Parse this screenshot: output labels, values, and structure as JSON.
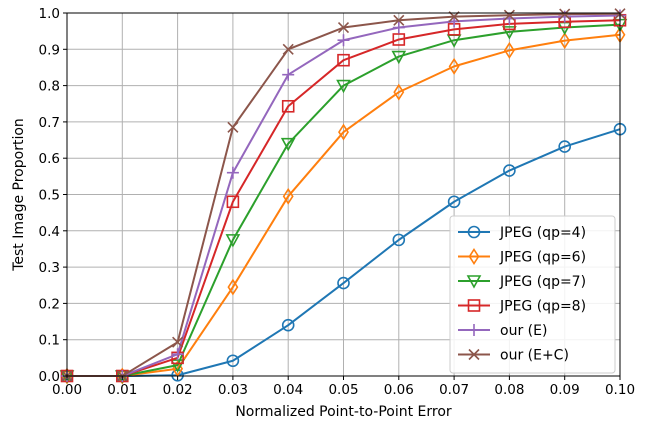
{
  "chart_data": {
    "type": "line",
    "title": "",
    "xlabel": "Normalized Point-to-Point Error",
    "ylabel": "Test Image Proportion",
    "xlim": [
      0.0,
      0.1
    ],
    "ylim": [
      0.0,
      1.0
    ],
    "xticks": [
      "0.00",
      "0.01",
      "0.02",
      "0.03",
      "0.04",
      "0.05",
      "0.06",
      "0.07",
      "0.08",
      "0.09",
      "0.10"
    ],
    "yticks": [
      "0.0",
      "0.1",
      "0.2",
      "0.3",
      "0.4",
      "0.5",
      "0.6",
      "0.7",
      "0.8",
      "0.9",
      "1.0"
    ],
    "grid": true,
    "legend_position": "lower-right",
    "x": [
      0.0,
      0.01,
      0.02,
      0.03,
      0.04,
      0.05,
      0.06,
      0.07,
      0.08,
      0.09,
      0.1
    ],
    "series": [
      {
        "name": "JPEG (qp=4)",
        "color": "#1f77b4",
        "marker": "circle",
        "values": [
          0.0,
          0.0,
          0.002,
          0.042,
          0.14,
          0.256,
          0.375,
          0.48,
          0.566,
          0.632,
          0.68
        ]
      },
      {
        "name": "JPEG (qp=6)",
        "color": "#ff7f0e",
        "marker": "diamond",
        "values": [
          0.0,
          0.0,
          0.02,
          0.245,
          0.495,
          0.672,
          0.782,
          0.853,
          0.897,
          0.924,
          0.94
        ]
      },
      {
        "name": "JPEG (qp=7)",
        "color": "#2ca02c",
        "marker": "triangle-down",
        "values": [
          0.0,
          0.0,
          0.03,
          0.375,
          0.64,
          0.8,
          0.88,
          0.925,
          0.948,
          0.96,
          0.968
        ]
      },
      {
        "name": "JPEG (qp=8)",
        "color": "#d62728",
        "marker": "square",
        "values": [
          0.0,
          0.0,
          0.05,
          0.48,
          0.743,
          0.87,
          0.927,
          0.955,
          0.97,
          0.976,
          0.98
        ]
      },
      {
        "name": "our (E)",
        "color": "#9467bd",
        "marker": "plus",
        "values": [
          0.0,
          0.0,
          0.06,
          0.56,
          0.83,
          0.925,
          0.96,
          0.977,
          0.985,
          0.99,
          0.993
        ]
      },
      {
        "name": "our (E+C)",
        "color": "#8c564b",
        "marker": "x",
        "values": [
          0.0,
          0.0,
          0.093,
          0.685,
          0.9,
          0.96,
          0.98,
          0.99,
          0.994,
          0.997,
          0.998
        ]
      }
    ]
  }
}
